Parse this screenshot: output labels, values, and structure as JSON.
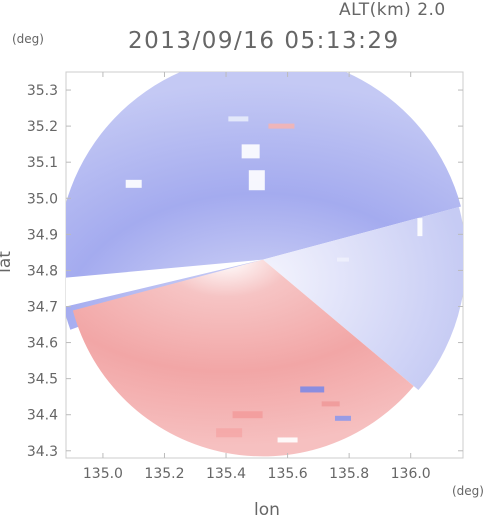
{
  "header": {
    "altitude": "ALT(km) 2.0",
    "timestamp": "2013/09/16 05:13:29"
  },
  "chart_data": {
    "type": "heatmap",
    "title": "2013/09/16 05:13:29",
    "subtitle": "ALT(km) 2.0",
    "xlabel": "lon",
    "ylabel": "lat",
    "x_unit": "(deg)",
    "y_unit": "(deg)",
    "xlim": [
      134.88,
      136.17
    ],
    "ylim": [
      34.28,
      35.35
    ],
    "x_ticks": [
      "135.0",
      "135.2",
      "135.4",
      "135.6",
      "135.8",
      "136.0"
    ],
    "x_tick_values": [
      135.0,
      135.2,
      135.4,
      135.6,
      135.8,
      136.0
    ],
    "y_ticks": [
      "34.3",
      "34.4",
      "34.5",
      "34.6",
      "34.7",
      "34.8",
      "34.9",
      "35.0",
      "35.1",
      "35.2",
      "35.3"
    ],
    "y_tick_values": [
      34.3,
      34.4,
      34.5,
      34.6,
      34.7,
      34.8,
      34.9,
      35.0,
      35.1,
      35.2,
      35.3
    ],
    "radar_center": {
      "lon": 135.52,
      "lat": 34.83
    },
    "colors": {
      "approaching": "#6f7de8",
      "receding": "#f07070",
      "neutral": "#ffffff"
    }
  }
}
